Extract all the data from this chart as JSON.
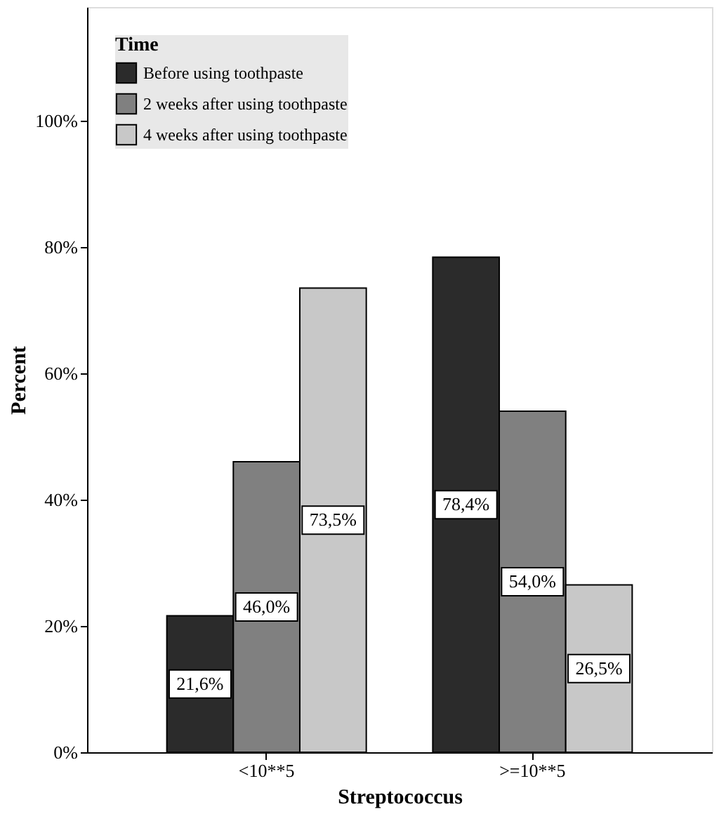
{
  "chart_data": {
    "type": "bar",
    "categories": [
      "<10**5",
      ">=10**5"
    ],
    "series": [
      {
        "name": "Before using toothpaste",
        "color": "#2b2b2b",
        "values": [
          21.6,
          78.4
        ],
        "value_labels": [
          "21,6%",
          "78,4%"
        ]
      },
      {
        "name": "2 weeks after using toothpaste",
        "color": "#808080",
        "values": [
          46.0,
          54.0
        ],
        "value_labels": [
          "46,0%",
          "54,0%"
        ]
      },
      {
        "name": "4 weeks after using toothpaste",
        "color": "#c8c8c8",
        "values": [
          73.5,
          26.5
        ],
        "value_labels": [
          "73,5%",
          "26,5%"
        ]
      }
    ],
    "xlabel": "Streptococcus",
    "ylabel": "Percent",
    "legend_title": "Time",
    "legend": "top left",
    "ylim": [
      0,
      118
    ],
    "yticks": [
      {
        "value": 0,
        "label": "0%"
      },
      {
        "value": 20,
        "label": "20%"
      },
      {
        "value": 40,
        "label": "40%"
      },
      {
        "value": 60,
        "label": "60%"
      },
      {
        "value": 80,
        "label": "80%"
      },
      {
        "value": 100,
        "label": "100%"
      }
    ],
    "grid": false
  }
}
